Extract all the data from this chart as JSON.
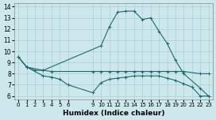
{
  "xlabel": "Humidex (Indice chaleur)",
  "background_color": "#cce8ec",
  "grid_color": "#aacdd2",
  "line_color": "#1a6b6b",
  "xlim": [
    -0.5,
    23.5
  ],
  "ylim": [
    5.7,
    14.3
  ],
  "yticks": [
    6,
    7,
    8,
    9,
    10,
    11,
    12,
    13,
    14
  ],
  "xticks": [
    0,
    1,
    2,
    3,
    4,
    5,
    6,
    9,
    10,
    11,
    12,
    13,
    14,
    15,
    16,
    17,
    18,
    19,
    20,
    21,
    22,
    23
  ],
  "series1_x": [
    0,
    1,
    2,
    3,
    10,
    11,
    12,
    13,
    14,
    15,
    16,
    17,
    18,
    19,
    20,
    22,
    23
  ],
  "series1_y": [
    9.5,
    8.6,
    8.3,
    8.3,
    10.5,
    12.2,
    13.5,
    13.6,
    13.6,
    12.85,
    13.0,
    11.8,
    10.7,
    9.2,
    8.0,
    6.7,
    6.0
  ],
  "series2_x": [
    0,
    1,
    3,
    4,
    9,
    10,
    11,
    12,
    13,
    14,
    15,
    16,
    17,
    18,
    19,
    20,
    22,
    23
  ],
  "series2_y": [
    9.5,
    8.6,
    8.3,
    8.2,
    8.2,
    8.2,
    8.2,
    8.2,
    8.2,
    8.2,
    8.2,
    8.2,
    8.2,
    8.2,
    8.2,
    8.2,
    8.0,
    8.0
  ],
  "series3_x": [
    0,
    1,
    3,
    4,
    5,
    6,
    9,
    10,
    11,
    12,
    13,
    14,
    15,
    16,
    17,
    18,
    19,
    20,
    21,
    22,
    23
  ],
  "series3_y": [
    9.5,
    8.6,
    7.8,
    7.7,
    7.5,
    7.0,
    6.3,
    7.2,
    7.5,
    7.6,
    7.7,
    7.8,
    7.8,
    7.8,
    7.8,
    7.6,
    7.4,
    7.1,
    6.8,
    6.0,
    6.0
  ]
}
